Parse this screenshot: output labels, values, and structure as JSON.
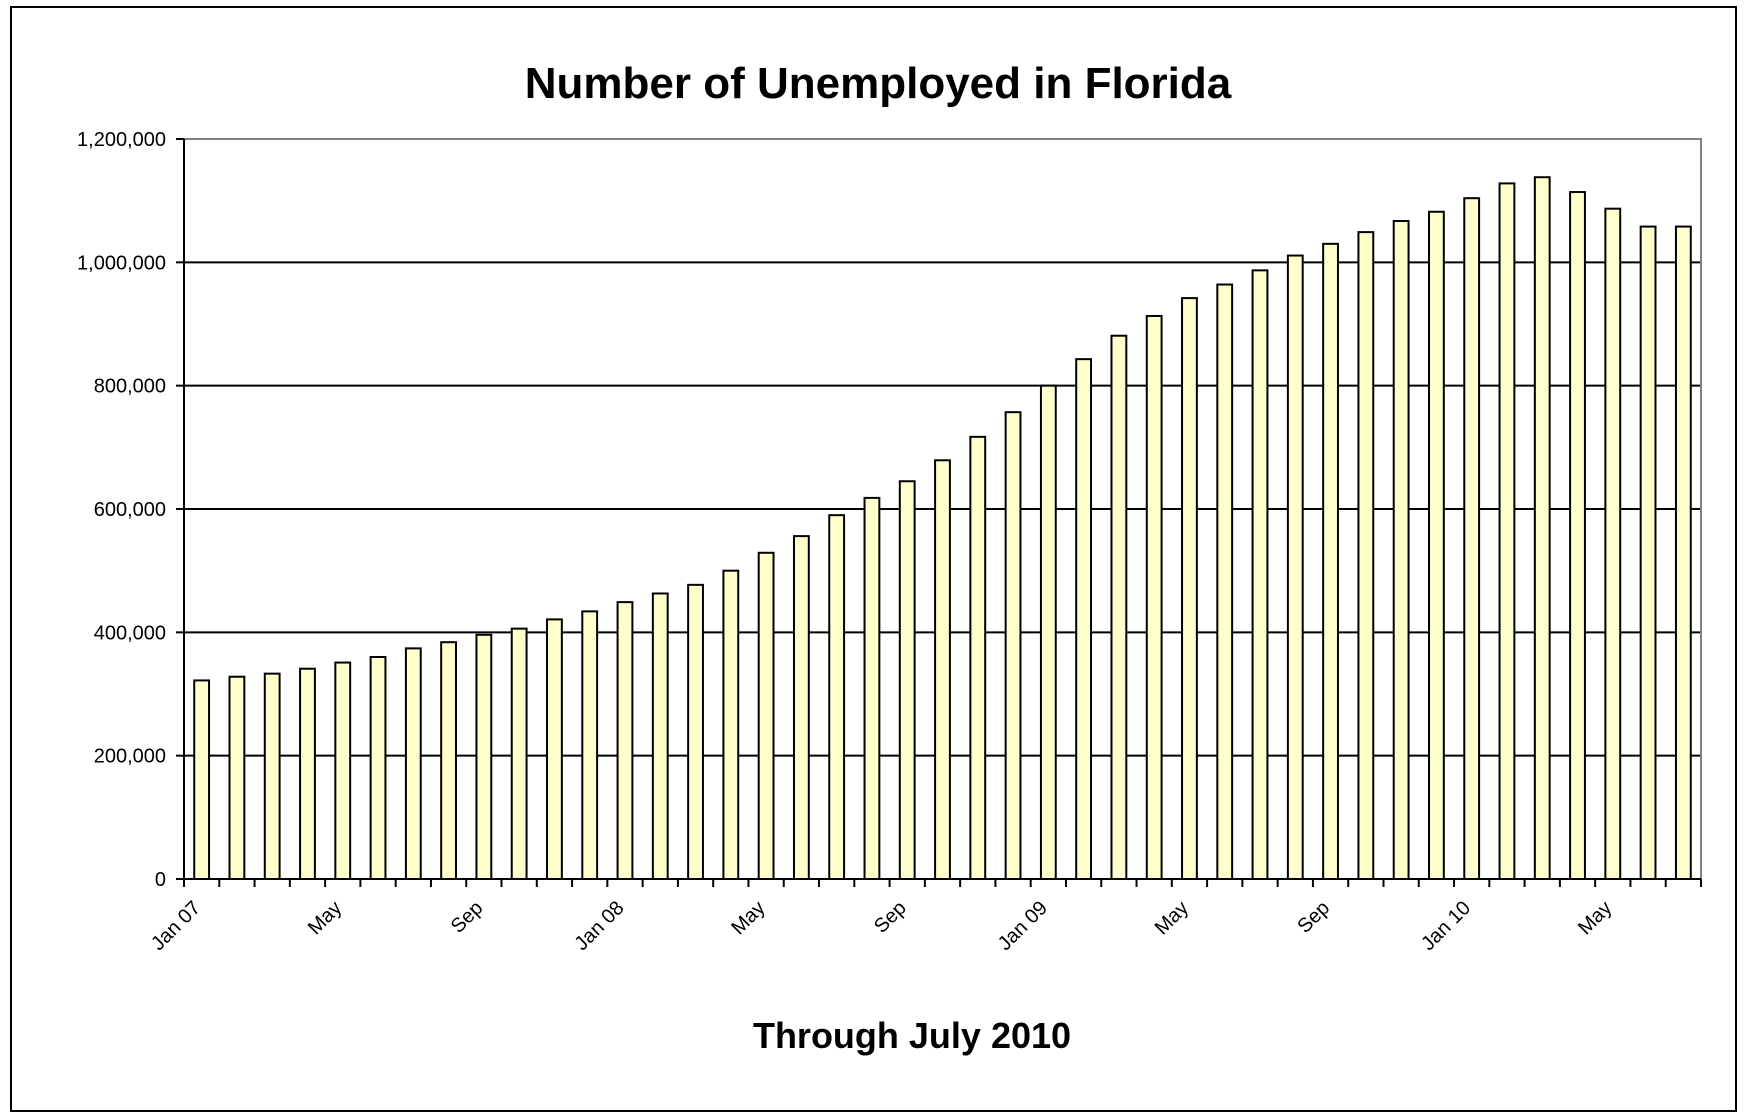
{
  "chart_data": {
    "type": "bar",
    "title": "Number of Unemployed in Florida",
    "xlabel": "Through July 2010",
    "ylabel": "",
    "ylim": [
      0,
      1200000
    ],
    "yticks": [
      0,
      200000,
      400000,
      600000,
      800000,
      1000000,
      1200000
    ],
    "ytick_labels": [
      "0",
      "200,000",
      "400,000",
      "600,000",
      "800,000",
      "1,000,000",
      "1,200,000"
    ],
    "grid": true,
    "legend": "none",
    "bar_color": "#FFFFCC",
    "bar_edge_color": "#000000",
    "categories": [
      "Jan 07",
      "Feb 07",
      "Mar 07",
      "Apr 07",
      "May 07",
      "Jun 07",
      "Jul 07",
      "Aug 07",
      "Sep 07",
      "Oct 07",
      "Nov 07",
      "Dec 07",
      "Jan 08",
      "Feb 08",
      "Mar 08",
      "Apr 08",
      "May 08",
      "Jun 08",
      "Jul 08",
      "Aug 08",
      "Sep 08",
      "Oct 08",
      "Nov 08",
      "Dec 08",
      "Jan 09",
      "Feb 09",
      "Mar 09",
      "Apr 09",
      "May 09",
      "Jun 09",
      "Jul 09",
      "Aug 09",
      "Sep 09",
      "Oct 09",
      "Nov 09",
      "Dec 09",
      "Jan 10",
      "Feb 10",
      "Mar 10",
      "Apr 10",
      "May 10",
      "Jun 10",
      "Jul 10"
    ],
    "tick_labels": [
      {
        "index": 0,
        "label": "Jan 07"
      },
      {
        "index": 4,
        "label": "May"
      },
      {
        "index": 8,
        "label": "Sep"
      },
      {
        "index": 12,
        "label": "Jan 08"
      },
      {
        "index": 16,
        "label": "May"
      },
      {
        "index": 20,
        "label": "Sep"
      },
      {
        "index": 24,
        "label": "Jan 09"
      },
      {
        "index": 28,
        "label": "May"
      },
      {
        "index": 32,
        "label": "Sep"
      },
      {
        "index": 36,
        "label": "Jan 10"
      },
      {
        "index": 40,
        "label": "May"
      }
    ],
    "values": [
      322000,
      328000,
      333000,
      341000,
      351000,
      360000,
      374000,
      384000,
      396000,
      406000,
      421000,
      434000,
      449000,
      463000,
      477000,
      500000,
      529000,
      556000,
      590000,
      618000,
      645000,
      679000,
      717000,
      757000,
      800000,
      843000,
      881000,
      913000,
      942000,
      964000,
      987000,
      1011000,
      1030000,
      1049000,
      1067000,
      1082000,
      1104000,
      1128000,
      1138000,
      1114000,
      1087000,
      1058000,
      1058000
    ]
  }
}
